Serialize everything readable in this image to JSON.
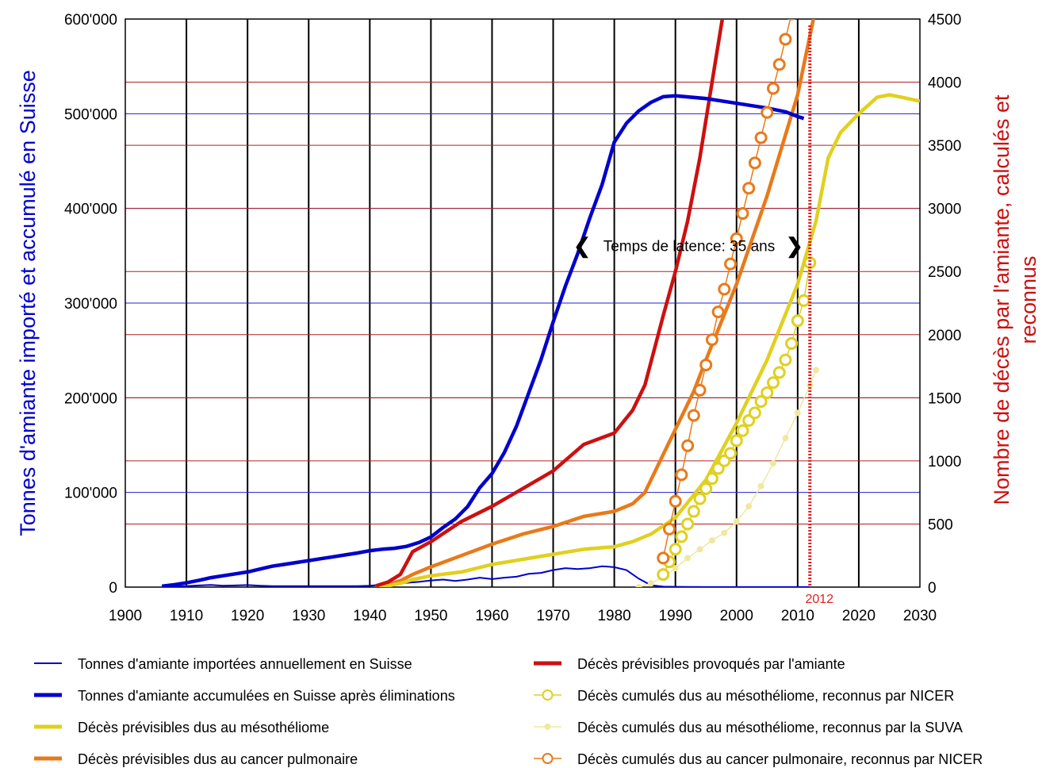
{
  "chart_data": {
    "type": "line",
    "left_axis_label": "Tonnes d'amiante importé et accumulé en Suisse",
    "right_axis_label_line1": "Nombre de décès par l'amiante, calculés et",
    "right_axis_label_line2": "reconnus",
    "xlim": [
      1900,
      2030
    ],
    "ylim_left": [
      0,
      600000
    ],
    "ylim_right": [
      0,
      4500
    ],
    "x_ticks": [
      1900,
      1910,
      1920,
      1930,
      1940,
      1950,
      1960,
      1970,
      1980,
      1990,
      2000,
      2010,
      2020,
      2030
    ],
    "left_ticks": [
      {
        "v": 0,
        "label": "0"
      },
      {
        "v": 100000,
        "label": "100'000"
      },
      {
        "v": 200000,
        "label": "200'000"
      },
      {
        "v": 300000,
        "label": "300'000"
      },
      {
        "v": 400000,
        "label": "400'000"
      },
      {
        "v": 500000,
        "label": "500'000"
      },
      {
        "v": 600000,
        "label": "600'000"
      }
    ],
    "right_ticks": [
      0,
      500,
      1000,
      1500,
      2000,
      2500,
      3000,
      3500,
      4000,
      4500
    ],
    "grid": true,
    "marker_year": 2012,
    "marker_label": "2012",
    "annotation": {
      "text": "Temps de latence: 35 ans",
      "x_start": 1975,
      "x_end": 2010,
      "y_right": 2700
    },
    "legend_placement": "bottom",
    "series": [
      {
        "name": "Tonnes d'amiante importées annuellement en Suisse",
        "axis": "left",
        "style": "thin",
        "color": "#0000cc",
        "x": [
          1906,
          1908,
          1910,
          1912,
          1914,
          1916,
          1918,
          1920,
          1922,
          1924,
          1926,
          1928,
          1930,
          1932,
          1934,
          1936,
          1938,
          1940,
          1942,
          1944,
          1946,
          1948,
          1950,
          1952,
          1954,
          1956,
          1958,
          1960,
          1962,
          1964,
          1966,
          1968,
          1970,
          1972,
          1974,
          1976,
          1978,
          1980,
          1982,
          1984,
          1986,
          1988,
          1990,
          1992,
          1995,
          2000,
          2005,
          2010,
          2012
        ],
        "y": [
          200,
          500,
          1000,
          1800,
          2300,
          1500,
          1800,
          2200,
          1500,
          1000,
          1000,
          1000,
          1000,
          1000,
          1000,
          1000,
          1000,
          1500,
          2500,
          3500,
          4500,
          5500,
          7000,
          8000,
          6500,
          8000,
          10000,
          8500,
          10000,
          11000,
          14000,
          15000,
          18000,
          20000,
          19000,
          20000,
          22000,
          21000,
          18000,
          9000,
          2000,
          500,
          300,
          200,
          100,
          100,
          100,
          100,
          100
        ]
      },
      {
        "name": "Tonnes d'amiante accumulées en Suisse après éliminations",
        "axis": "left",
        "style": "thick",
        "color": "#0000cc",
        "x": [
          1906,
          1908,
          1910,
          1912,
          1914,
          1916,
          1918,
          1920,
          1922,
          1924,
          1926,
          1928,
          1930,
          1932,
          1934,
          1936,
          1938,
          1940,
          1942,
          1944,
          1946,
          1948,
          1950,
          1952,
          1954,
          1956,
          1958,
          1960,
          1962,
          1964,
          1966,
          1968,
          1970,
          1972,
          1974,
          1976,
          1978,
          1980,
          1982,
          1984,
          1986,
          1988,
          1990,
          1995,
          2000,
          2005,
          2008,
          2010,
          2011
        ],
        "y": [
          1000,
          2500,
          4500,
          7000,
          10000,
          12000,
          14000,
          16000,
          19000,
          22000,
          24000,
          26000,
          28000,
          30000,
          32000,
          34000,
          36000,
          38500,
          40000,
          41000,
          43000,
          47000,
          53000,
          63000,
          72000,
          85000,
          105000,
          120000,
          142000,
          170000,
          205000,
          240000,
          280000,
          318000,
          352000,
          390000,
          425000,
          470000,
          490000,
          503000,
          512000,
          518000,
          519000,
          516000,
          511000,
          506000,
          502000,
          497000,
          495000
        ]
      },
      {
        "name": "Décès prévisibles dus au mésothéliome",
        "axis": "right",
        "style": "thick",
        "color": "#e0d020",
        "x": [
          1941,
          1943,
          1945,
          1947,
          1950,
          1955,
          1960,
          1965,
          1970,
          1975,
          1980,
          1983,
          1986,
          1990,
          1995,
          2000,
          2005,
          2010,
          2013,
          2015,
          2017,
          2020,
          2023,
          2025,
          2027,
          2030
        ],
        "y": [
          0,
          10,
          30,
          60,
          90,
          120,
          180,
          220,
          260,
          300,
          320,
          360,
          420,
          550,
          850,
          1300,
          1800,
          2400,
          2900,
          3400,
          3600,
          3750,
          3880,
          3900,
          3880,
          3850
        ]
      },
      {
        "name": "Décès prévisibles dus au cancer pulmonaire",
        "axis": "right",
        "style": "thick",
        "color": "#e87a1a",
        "x": [
          1941,
          1943,
          1945,
          1947,
          1950,
          1955,
          1960,
          1965,
          1970,
          1975,
          1980,
          1983,
          1985,
          1988,
          1990,
          1993,
          1995,
          2000,
          2005,
          2010,
          2013
        ],
        "y": [
          0,
          20,
          50,
          100,
          160,
          250,
          340,
          420,
          480,
          560,
          600,
          660,
          750,
          1050,
          1250,
          1550,
          1800,
          2400,
          3100,
          3900,
          4600
        ]
      },
      {
        "name": "Décès prévisibles provoqués par l'amiante",
        "axis": "right",
        "style": "thick",
        "color": "#cc1010",
        "x": [
          1941,
          1943,
          1945,
          1947,
          1950,
          1955,
          1960,
          1965,
          1970,
          1975,
          1980,
          1983,
          1985,
          1988,
          1990,
          1992,
          1994,
          1996,
          1998
        ],
        "y": [
          10,
          40,
          100,
          280,
          360,
          520,
          640,
          780,
          920,
          1130,
          1220,
          1400,
          1600,
          2150,
          2500,
          2900,
          3400,
          4000,
          4600
        ]
      },
      {
        "name": "Décès cumulés dus au mésothéliome, reconnus par NICER",
        "axis": "right",
        "style": "circles",
        "color": "#e0d020",
        "x": [
          1988,
          1989,
          1990,
          1991,
          1992,
          1993,
          1994,
          1995,
          1996,
          1997,
          1998,
          1999,
          2000,
          2001,
          2002,
          2003,
          2004,
          2005,
          2006,
          2007,
          2008,
          2009,
          2010,
          2011,
          2012
        ],
        "y": [
          100,
          200,
          300,
          400,
          500,
          600,
          700,
          780,
          860,
          940,
          1000,
          1060,
          1160,
          1240,
          1320,
          1380,
          1470,
          1540,
          1620,
          1700,
          1800,
          1930,
          2110,
          2270,
          2570
        ]
      },
      {
        "name": "Décès cumulés dus au mésothéliome, reconnus par la SUVA",
        "axis": "right",
        "style": "dots",
        "color": "#f0e8a0",
        "x": [
          1984,
          1986,
          1988,
          1990,
          1992,
          1994,
          1996,
          1998,
          2000,
          2002,
          2004,
          2006,
          2008,
          2010,
          2012,
          2013
        ],
        "y": [
          0,
          30,
          80,
          150,
          230,
          300,
          370,
          430,
          520,
          640,
          800,
          980,
          1180,
          1380,
          1600,
          1720
        ]
      },
      {
        "name": "Décès cumulés dus au cancer pulmonaire, reconnus par NICER",
        "axis": "right",
        "style": "circles",
        "color": "#e87a1a",
        "x": [
          1988,
          1989,
          1990,
          1991,
          1992,
          1993,
          1994,
          1995,
          1996,
          1997,
          1998,
          1999,
          2000,
          2001,
          2002,
          2003,
          2004,
          2005,
          2006,
          2007,
          2008,
          2009
        ],
        "y": [
          230,
          460,
          680,
          890,
          1120,
          1360,
          1560,
          1760,
          1960,
          2180,
          2360,
          2560,
          2760,
          2960,
          3160,
          3360,
          3560,
          3760,
          3950,
          4140,
          4340,
          4540
        ]
      }
    ]
  }
}
